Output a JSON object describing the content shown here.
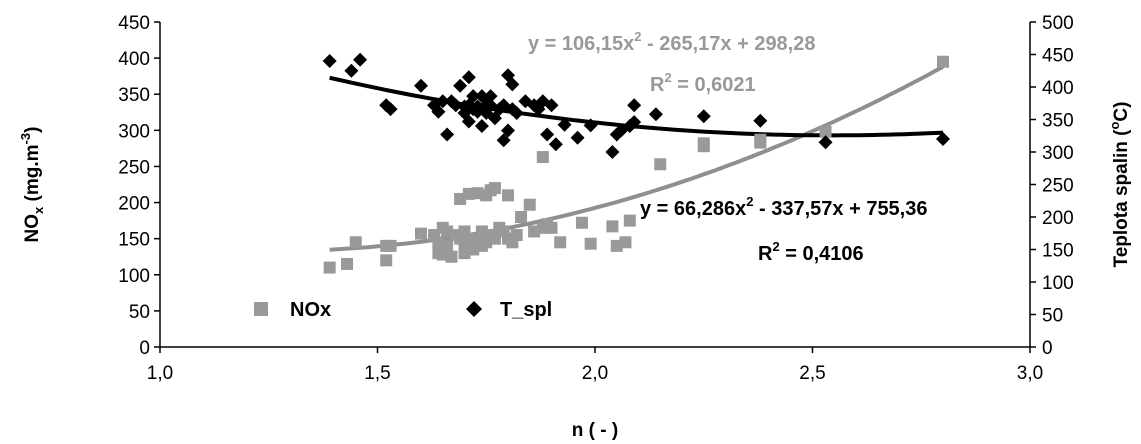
{
  "chart_data": {
    "type": "scatter",
    "xlabel": "n ( - )",
    "ylabel_left": "NOx (mg.m-3)",
    "ylabel_left_parts": {
      "base": "NO",
      "sub": "x",
      "rest": " (mg.m",
      "sup": "-3",
      "end": ")"
    },
    "ylabel_right": "Teplota spalin (°C)",
    "ylabel_right_parts": {
      "base": "Teplota spalin (",
      "sup": "o",
      "end": "C)"
    },
    "xlim": [
      1.0,
      3.0
    ],
    "ylim_left": [
      0,
      450
    ],
    "ylim_right": [
      0,
      500
    ],
    "x_ticks": [
      1.0,
      1.5,
      2.0,
      2.5,
      3.0
    ],
    "x_tick_labels": [
      "1,0",
      "1,5",
      "2,0",
      "2,5",
      "3,0"
    ],
    "y_left_ticks": [
      0,
      50,
      100,
      150,
      200,
      250,
      300,
      350,
      400,
      450
    ],
    "y_right_ticks": [
      0,
      50,
      100,
      150,
      200,
      250,
      300,
      350,
      400,
      450,
      500
    ],
    "grid": false,
    "legend_placement": "bottom-left",
    "series": [
      {
        "name": "NOx",
        "axis": "left",
        "marker": "square",
        "color": "#999999",
        "points": [
          [
            1.39,
            110
          ],
          [
            1.43,
            115
          ],
          [
            1.45,
            145
          ],
          [
            1.52,
            140
          ],
          [
            1.52,
            120
          ],
          [
            1.53,
            140
          ],
          [
            1.6,
            157
          ],
          [
            1.63,
            155
          ],
          [
            1.64,
            130
          ],
          [
            1.64,
            145
          ],
          [
            1.65,
            165
          ],
          [
            1.65,
            128
          ],
          [
            1.66,
            160
          ],
          [
            1.66,
            140
          ],
          [
            1.67,
            125
          ],
          [
            1.68,
            155
          ],
          [
            1.69,
            150
          ],
          [
            1.69,
            205
          ],
          [
            1.7,
            130
          ],
          [
            1.7,
            145
          ],
          [
            1.7,
            160
          ],
          [
            1.71,
            212
          ],
          [
            1.71,
            140
          ],
          [
            1.72,
            150
          ],
          [
            1.72,
            135
          ],
          [
            1.73,
            213
          ],
          [
            1.73,
            150
          ],
          [
            1.74,
            160
          ],
          [
            1.74,
            140
          ],
          [
            1.75,
            145
          ],
          [
            1.75,
            210
          ],
          [
            1.76,
            217
          ],
          [
            1.76,
            155
          ],
          [
            1.77,
            220
          ],
          [
            1.77,
            150
          ],
          [
            1.78,
            165
          ],
          [
            1.79,
            160
          ],
          [
            1.8,
            150
          ],
          [
            1.8,
            210
          ],
          [
            1.81,
            145
          ],
          [
            1.82,
            155
          ],
          [
            1.83,
            180
          ],
          [
            1.85,
            197
          ],
          [
            1.86,
            160
          ],
          [
            1.88,
            165
          ],
          [
            1.88,
            263
          ],
          [
            1.89,
            170
          ],
          [
            1.9,
            165
          ],
          [
            1.92,
            145
          ],
          [
            1.97,
            172
          ],
          [
            1.99,
            143
          ],
          [
            2.04,
            167
          ],
          [
            2.05,
            140
          ],
          [
            2.07,
            145
          ],
          [
            2.08,
            175
          ],
          [
            2.15,
            253
          ],
          [
            2.25,
            278
          ],
          [
            2.25,
            282
          ],
          [
            2.38,
            283
          ],
          [
            2.38,
            287
          ],
          [
            2.53,
            298
          ],
          [
            2.8,
            395
          ]
        ],
        "trend": {
          "a": 106.15,
          "b": -265.17,
          "c": 298.28
        },
        "equation": "y = 106,15x2 - 265,17x + 298,28",
        "equation_parts": {
          "pre": "y = 106,15x",
          "sup": "2",
          "post": " - 265,17x + 298,28"
        },
        "r2_parts": {
          "pre": "R",
          "sup": "2",
          "post": " = 0,6021"
        }
      },
      {
        "name": "T_spl",
        "axis": "right",
        "marker": "diamond",
        "color": "#000000",
        "points": [
          [
            1.39,
            440
          ],
          [
            1.44,
            425
          ],
          [
            1.46,
            442
          ],
          [
            1.52,
            372
          ],
          [
            1.53,
            366
          ],
          [
            1.6,
            402
          ],
          [
            1.63,
            372
          ],
          [
            1.64,
            362
          ],
          [
            1.65,
            378
          ],
          [
            1.66,
            327
          ],
          [
            1.67,
            378
          ],
          [
            1.68,
            372
          ],
          [
            1.69,
            402
          ],
          [
            1.7,
            370
          ],
          [
            1.7,
            360
          ],
          [
            1.71,
            372
          ],
          [
            1.71,
            347
          ],
          [
            1.71,
            415
          ],
          [
            1.72,
            386
          ],
          [
            1.72,
            366
          ],
          [
            1.73,
            370
          ],
          [
            1.73,
            362
          ],
          [
            1.74,
            386
          ],
          [
            1.74,
            340
          ],
          [
            1.75,
            372
          ],
          [
            1.75,
            360
          ],
          [
            1.76,
            386
          ],
          [
            1.76,
            372
          ],
          [
            1.77,
            352
          ],
          [
            1.78,
            366
          ],
          [
            1.79,
            318
          ],
          [
            1.79,
            372
          ],
          [
            1.8,
            333
          ],
          [
            1.8,
            418
          ],
          [
            1.81,
            404
          ],
          [
            1.81,
            366
          ],
          [
            1.82,
            360
          ],
          [
            1.84,
            378
          ],
          [
            1.86,
            372
          ],
          [
            1.87,
            366
          ],
          [
            1.88,
            378
          ],
          [
            1.89,
            327
          ],
          [
            1.9,
            372
          ],
          [
            1.91,
            312
          ],
          [
            1.93,
            342
          ],
          [
            1.96,
            322
          ],
          [
            1.99,
            341
          ],
          [
            2.04,
            300
          ],
          [
            2.05,
            327
          ],
          [
            2.06,
            333
          ],
          [
            2.08,
            340
          ],
          [
            2.09,
            346
          ],
          [
            2.09,
            372
          ],
          [
            2.14,
            358
          ],
          [
            2.25,
            355
          ],
          [
            2.38,
            348
          ],
          [
            2.53,
            315
          ],
          [
            2.8,
            320
          ]
        ],
        "trend": {
          "a": 66.286,
          "b": -337.57,
          "c": 755.36
        },
        "equation": "y = 66,286x2 - 337,57x + 755,36",
        "equation_parts": {
          "pre": "y = 66,286x",
          "sup": "2",
          "post": " - 337,57x + 755,36"
        },
        "r2_parts": {
          "pre": "R",
          "sup": "2",
          "post": " = 0,4106"
        }
      }
    ]
  }
}
